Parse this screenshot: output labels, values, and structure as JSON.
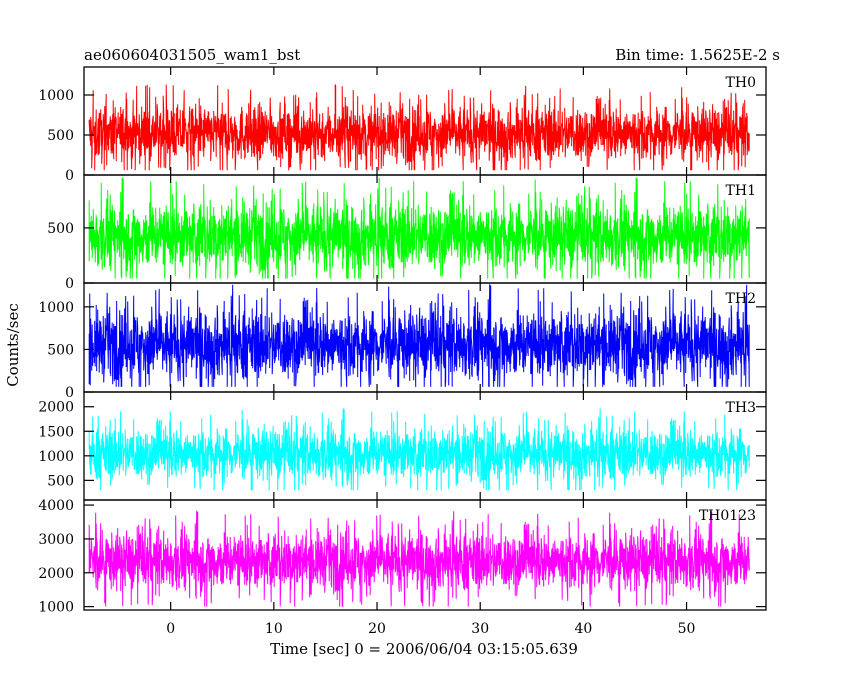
{
  "chart_data": {
    "type": "line",
    "title": "ae060604031505_wam1_bst",
    "subtitle": "Bin time: 1.5625E-2 s",
    "xlabel": "Time [sec] 0 = 2006/06/04 03:15:05.639",
    "ylabel": "Counts/sec",
    "xlim": [
      -8.4,
      57.7
    ],
    "x_ticks": [
      0,
      10,
      20,
      30,
      40,
      50
    ],
    "x_data_range": [
      -7.9,
      56.1
    ],
    "bin_time": 0.015625,
    "grid": false,
    "series": [
      {
        "name": "TH0",
        "color": "#ff0000",
        "ylim": [
          0,
          1350
        ],
        "y_ticks": [
          0,
          500,
          1000
        ],
        "mean": 520,
        "spread": 170,
        "min": 60,
        "max": 1320
      },
      {
        "name": "TH1",
        "color": "#00ff00",
        "ylim": [
          0,
          980
        ],
        "y_ticks": [
          0,
          500
        ],
        "mean": 430,
        "spread": 150,
        "min": 40,
        "max": 960
      },
      {
        "name": "TH2",
        "color": "#0000ff",
        "ylim": [
          0,
          1280
        ],
        "y_ticks": [
          0,
          500,
          1000
        ],
        "mean": 560,
        "spread": 200,
        "min": 60,
        "max": 1270
      },
      {
        "name": "TH3",
        "color": "#00ffff",
        "ylim": [
          100,
          2300
        ],
        "y_ticks": [
          500,
          1000,
          1500,
          2000
        ],
        "mean": 1050,
        "spread": 260,
        "min": 300,
        "max": 2200
      },
      {
        "name": "TH0123",
        "color": "#ff00ff",
        "ylim": [
          900,
          4150
        ],
        "y_ticks": [
          1000,
          2000,
          3000,
          4000
        ],
        "mean": 2350,
        "spread": 420,
        "min": 1000,
        "max": 4050
      }
    ]
  }
}
